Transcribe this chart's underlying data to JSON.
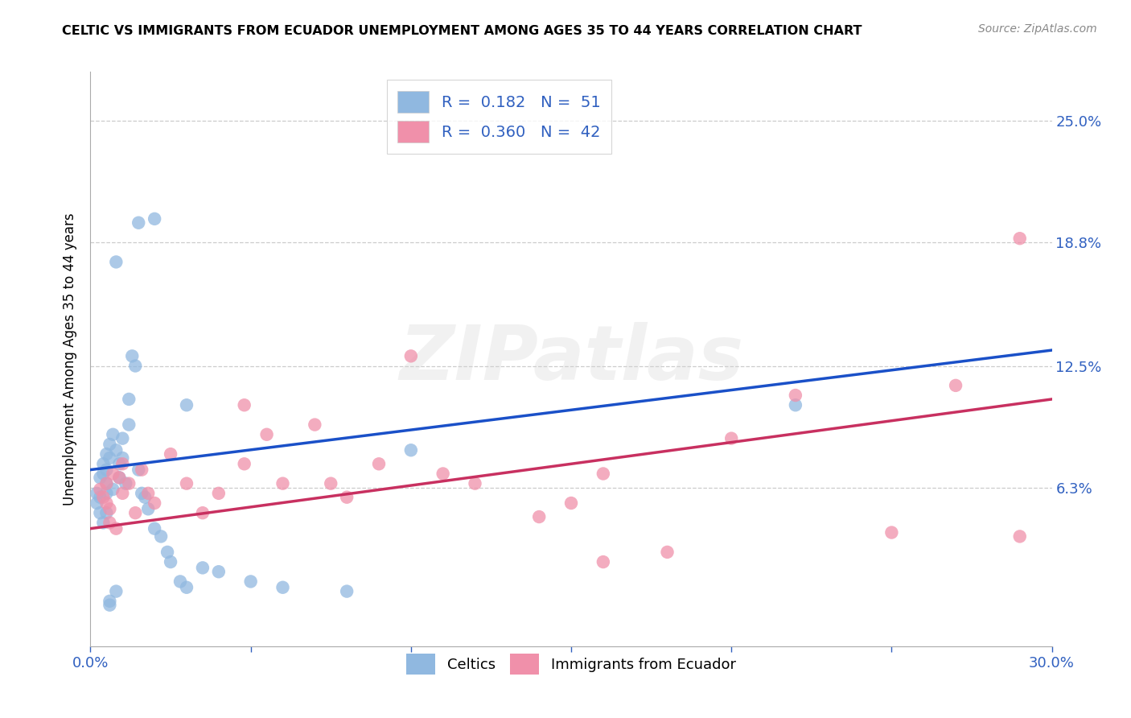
{
  "title": "CELTIC VS IMMIGRANTS FROM ECUADOR UNEMPLOYMENT AMONG AGES 35 TO 44 YEARS CORRELATION CHART",
  "source": "Source: ZipAtlas.com",
  "ylabel": "Unemployment Among Ages 35 to 44 years",
  "xlim": [
    0.0,
    0.3
  ],
  "ylim": [
    -0.018,
    0.275
  ],
  "x_ticks": [
    0.0,
    0.05,
    0.1,
    0.15,
    0.2,
    0.25,
    0.3
  ],
  "x_tick_labels": [
    "0.0%",
    "",
    "",
    "",
    "",
    "",
    "30.0%"
  ],
  "y_tick_vals_right": [
    0.063,
    0.125,
    0.188,
    0.25
  ],
  "y_tick_labels_right": [
    "6.3%",
    "12.5%",
    "18.8%",
    "25.0%"
  ],
  "celtics_color": "#90b8e0",
  "ecuador_color": "#f090aa",
  "celtics_line_color": "#1a50c8",
  "ecuador_line_color": "#c83060",
  "celtics_line_x0": 0.0,
  "celtics_line_y0": 0.072,
  "celtics_line_x1": 0.3,
  "celtics_line_y1": 0.133,
  "ecuador_line_x0": 0.0,
  "ecuador_line_y0": 0.042,
  "ecuador_line_x1": 0.3,
  "ecuador_line_y1": 0.108,
  "R_celtics": 0.182,
  "N_celtics": 51,
  "R_ecuador": 0.36,
  "N_ecuador": 42,
  "celtics_x": [
    0.002,
    0.002,
    0.003,
    0.003,
    0.003,
    0.004,
    0.004,
    0.004,
    0.005,
    0.005,
    0.005,
    0.005,
    0.005,
    0.006,
    0.006,
    0.006,
    0.007,
    0.007,
    0.008,
    0.008,
    0.009,
    0.009,
    0.01,
    0.01,
    0.011,
    0.012,
    0.013,
    0.014,
    0.015,
    0.016,
    0.017,
    0.018,
    0.02,
    0.022,
    0.024,
    0.025,
    0.028,
    0.03,
    0.035,
    0.04,
    0.05,
    0.06,
    0.08,
    0.1,
    0.02,
    0.015,
    0.008,
    0.03,
    0.012,
    0.006,
    0.22
  ],
  "celtics_y": [
    0.06,
    0.055,
    0.068,
    0.058,
    0.05,
    0.075,
    0.07,
    0.045,
    0.08,
    0.072,
    0.065,
    0.06,
    0.05,
    0.085,
    0.078,
    0.005,
    0.09,
    0.062,
    0.082,
    0.01,
    0.075,
    0.068,
    0.088,
    0.078,
    0.065,
    0.095,
    0.13,
    0.125,
    0.072,
    0.06,
    0.058,
    0.052,
    0.042,
    0.038,
    0.03,
    0.025,
    0.015,
    0.012,
    0.022,
    0.02,
    0.015,
    0.012,
    0.01,
    0.082,
    0.2,
    0.198,
    0.178,
    0.105,
    0.108,
    0.003,
    0.105
  ],
  "ecuador_x": [
    0.003,
    0.004,
    0.005,
    0.005,
    0.006,
    0.006,
    0.007,
    0.008,
    0.009,
    0.01,
    0.01,
    0.012,
    0.014,
    0.016,
    0.018,
    0.02,
    0.025,
    0.03,
    0.035,
    0.04,
    0.048,
    0.055,
    0.06,
    0.07,
    0.08,
    0.09,
    0.1,
    0.12,
    0.14,
    0.16,
    0.18,
    0.2,
    0.22,
    0.25,
    0.27,
    0.29,
    0.048,
    0.075,
    0.11,
    0.16,
    0.29,
    0.15
  ],
  "ecuador_y": [
    0.062,
    0.058,
    0.065,
    0.055,
    0.052,
    0.045,
    0.07,
    0.042,
    0.068,
    0.075,
    0.06,
    0.065,
    0.05,
    0.072,
    0.06,
    0.055,
    0.08,
    0.065,
    0.05,
    0.06,
    0.075,
    0.09,
    0.065,
    0.095,
    0.058,
    0.075,
    0.13,
    0.065,
    0.048,
    0.025,
    0.03,
    0.088,
    0.11,
    0.04,
    0.115,
    0.038,
    0.105,
    0.065,
    0.07,
    0.07,
    0.19,
    0.055
  ],
  "watermark": "ZIPatlas",
  "grid_color": "#cccccc"
}
